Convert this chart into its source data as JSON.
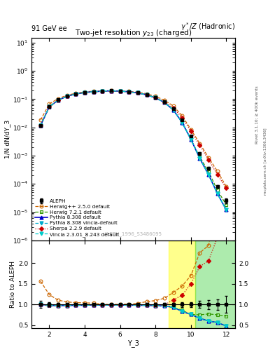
{
  "title_main": "Two-jet resolution $y_{23}$ (charged)",
  "top_left_label": "91 GeV ee",
  "top_right_label": "$\\gamma^*/Z$ (Hadronic)",
  "ylabel_main": "1/N dN/dY_3",
  "ylabel_ratio": "Ratio to ALEPH",
  "xlabel": "Y_3",
  "watermark": "ALEPH_1996_S3486095",
  "x_data": [
    1.5,
    2.0,
    2.5,
    3.0,
    3.5,
    4.0,
    4.5,
    5.0,
    5.5,
    6.0,
    6.5,
    7.0,
    7.5,
    8.0,
    8.5,
    9.0,
    9.5,
    10.0,
    10.5,
    11.0,
    11.5,
    12.0
  ],
  "aleph_y": [
    0.0115,
    0.055,
    0.095,
    0.13,
    0.155,
    0.175,
    0.185,
    0.195,
    0.2,
    0.195,
    0.185,
    0.17,
    0.145,
    0.115,
    0.08,
    0.045,
    0.018,
    0.005,
    0.0012,
    0.00035,
    8e-05,
    2.5e-05
  ],
  "aleph_yerr": [
    0.001,
    0.003,
    0.004,
    0.005,
    0.005,
    0.005,
    0.005,
    0.005,
    0.005,
    0.005,
    0.005,
    0.005,
    0.005,
    0.005,
    0.003,
    0.002,
    0.001,
    0.0003,
    0.0001,
    4e-05,
    1e-05,
    5e-06
  ],
  "herwig250_y": [
    0.018,
    0.068,
    0.105,
    0.138,
    0.162,
    0.182,
    0.191,
    0.196,
    0.2,
    0.196,
    0.187,
    0.175,
    0.155,
    0.126,
    0.092,
    0.058,
    0.026,
    0.0085,
    0.0027,
    0.00085,
    0.00028,
    8e-05
  ],
  "herwig721_y": [
    0.0115,
    0.053,
    0.092,
    0.127,
    0.152,
    0.172,
    0.182,
    0.192,
    0.197,
    0.192,
    0.182,
    0.167,
    0.142,
    0.112,
    0.077,
    0.042,
    0.0155,
    0.0038,
    0.0009,
    0.00027,
    6e-05,
    1.8e-05
  ],
  "pythia308_y": [
    0.0115,
    0.054,
    0.092,
    0.127,
    0.152,
    0.172,
    0.183,
    0.192,
    0.197,
    0.192,
    0.182,
    0.167,
    0.142,
    0.112,
    0.077,
    0.042,
    0.015,
    0.0038,
    0.0008,
    0.00021,
    4.5e-05,
    1.2e-05
  ],
  "pythia308v_y": [
    0.0115,
    0.054,
    0.092,
    0.127,
    0.152,
    0.172,
    0.183,
    0.192,
    0.197,
    0.192,
    0.182,
    0.167,
    0.142,
    0.112,
    0.077,
    0.042,
    0.015,
    0.0038,
    0.0008,
    0.00021,
    4.5e-05,
    1.2e-05
  ],
  "sherpa229_y": [
    0.0115,
    0.054,
    0.092,
    0.127,
    0.152,
    0.172,
    0.183,
    0.192,
    0.197,
    0.192,
    0.182,
    0.167,
    0.142,
    0.112,
    0.079,
    0.05,
    0.022,
    0.0075,
    0.0023,
    0.00072,
    0.00021,
    7e-05
  ],
  "vincia_y": [
    0.0115,
    0.054,
    0.092,
    0.127,
    0.152,
    0.172,
    0.183,
    0.192,
    0.197,
    0.192,
    0.182,
    0.167,
    0.142,
    0.112,
    0.077,
    0.042,
    0.015,
    0.0038,
    0.0008,
    0.00021,
    4.5e-05,
    1.2e-05
  ],
  "colors": {
    "aleph": "#000000",
    "herwig250": "#cc6600",
    "herwig721": "#339900",
    "pythia308": "#0000cc",
    "pythia308v": "#00aacc",
    "sherpa229": "#cc0000",
    "vincia": "#00cccc"
  },
  "xlim": [
    1.0,
    12.5
  ],
  "ylim_main": [
    1e-06,
    15.0
  ],
  "ylim_ratio": [
    0.42,
    2.55
  ],
  "ratio_yticks": [
    0.5,
    1.0,
    1.5,
    2.0
  ],
  "band_yellow_start": 8.75,
  "band_yellow_end": 10.25,
  "band_green_start": 10.25,
  "band_green_end": 12.5
}
